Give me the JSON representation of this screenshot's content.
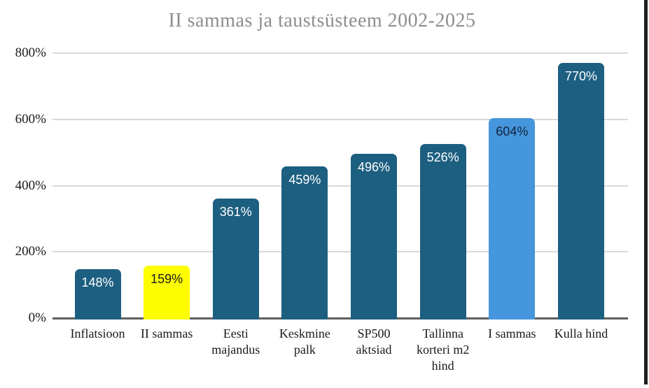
{
  "chart_data": {
    "type": "bar",
    "title": "II sammas ja taustsüsteem 2002-2025",
    "categories": [
      "Inflatsioon",
      "II sammas",
      "Eesti majandus",
      "Keskmine palk",
      "SP500 aktsiad",
      "Tallinna korteri m2 hind",
      "I sammas",
      "Kulla hind"
    ],
    "values": [
      148,
      159,
      361,
      459,
      496,
      526,
      604,
      770
    ],
    "value_labels": [
      "148%",
      "159%",
      "361%",
      "459%",
      "496%",
      "526%",
      "604%",
      "770%"
    ],
    "bar_colors": [
      "#1d5f80",
      "#fdfd00",
      "#1d5f80",
      "#1d5f80",
      "#1d5f80",
      "#1d5f80",
      "#4596dc",
      "#1d5f80"
    ],
    "value_label_colors": [
      "#ffffff",
      "#1a1a1a",
      "#ffffff",
      "#ffffff",
      "#ffffff",
      "#ffffff",
      "#12233d",
      "#ffffff"
    ],
    "xlabel": "",
    "ylabel": "",
    "ylim": [
      0,
      800
    ],
    "yticks": [
      {
        "value": 0,
        "label": "0%"
      },
      {
        "value": 200,
        "label": "200%"
      },
      {
        "value": 400,
        "label": "400%"
      },
      {
        "value": 600,
        "label": "600%"
      },
      {
        "value": 800,
        "label": "800%"
      }
    ],
    "grid": true,
    "legend": "none"
  },
  "colors": {
    "background": "#ffffff",
    "title_text": "#8d8d8d",
    "axis_text": "#1a1a1a",
    "gridline": "#d9d9d9",
    "baseline": "#5f5f5f",
    "screen_edge": "#1f1f1f"
  }
}
